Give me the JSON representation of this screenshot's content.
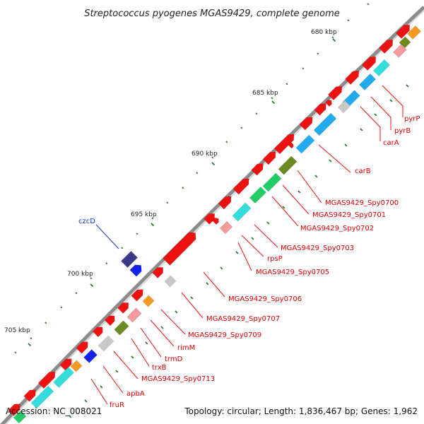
{
  "title": "Streptococcus pyogenes MGAS9429, complete genome",
  "footer": {
    "accession": "Accession: NC_008021",
    "summary": "Topology: circular; Length: 1,836,467 bp; Genes: 1,962"
  },
  "ticks": [
    "680 kbp",
    "685 kbp",
    "690 kbp",
    "695 kbp",
    "700 kbp",
    "705 kbp"
  ],
  "gene_labels": [
    {
      "text": "pyrP",
      "color": "#dd0000"
    },
    {
      "text": "pyrB",
      "color": "#dd0000"
    },
    {
      "text": "carA",
      "color": "#dd0000"
    },
    {
      "text": "carB",
      "color": "#dd0000"
    },
    {
      "text": "MGAS9429_Spy0700",
      "color": "#dd0000"
    },
    {
      "text": "MGAS9429_Spy0701",
      "color": "#dd0000"
    },
    {
      "text": "MGAS9429_Spy0702",
      "color": "#dd0000"
    },
    {
      "text": "MGAS9429_Spy0703",
      "color": "#dd0000"
    },
    {
      "text": "rpsP",
      "color": "#dd0000"
    },
    {
      "text": "MGAS9429_Spy0705",
      "color": "#dd0000"
    },
    {
      "text": "MGAS9429_Spy0706",
      "color": "#dd0000"
    },
    {
      "text": "MGAS9429_Spy0707",
      "color": "#dd0000"
    },
    {
      "text": "MGAS9429_Spy0709",
      "color": "#dd0000"
    },
    {
      "text": "rimM",
      "color": "#dd0000"
    },
    {
      "text": "trmD",
      "color": "#dd0000"
    },
    {
      "text": "trxB",
      "color": "#dd0000"
    },
    {
      "text": "MGAS9429_Spy0713",
      "color": "#dd0000"
    },
    {
      "text": "apbA",
      "color": "#dd0000"
    },
    {
      "text": "fruR",
      "color": "#dd0000"
    },
    {
      "text": "czcD",
      "color": "#1a2ecc"
    }
  ],
  "colors": {
    "backbone": "#8c8c8c",
    "cds_forward": "#ee1111",
    "rna": "#f59a9a",
    "cog_blue": "#22aaee",
    "cog_cyan": "#33dddd",
    "cog_green": "#22cc66",
    "cog_olive": "#6b8a1f",
    "cog_orange": "#f59a20",
    "cog_gray": "#c8c8c8",
    "reverse_navy": "#3a3a88",
    "reverse_blue": "#1122ee",
    "gc_marks": "#2a7a2a"
  }
}
